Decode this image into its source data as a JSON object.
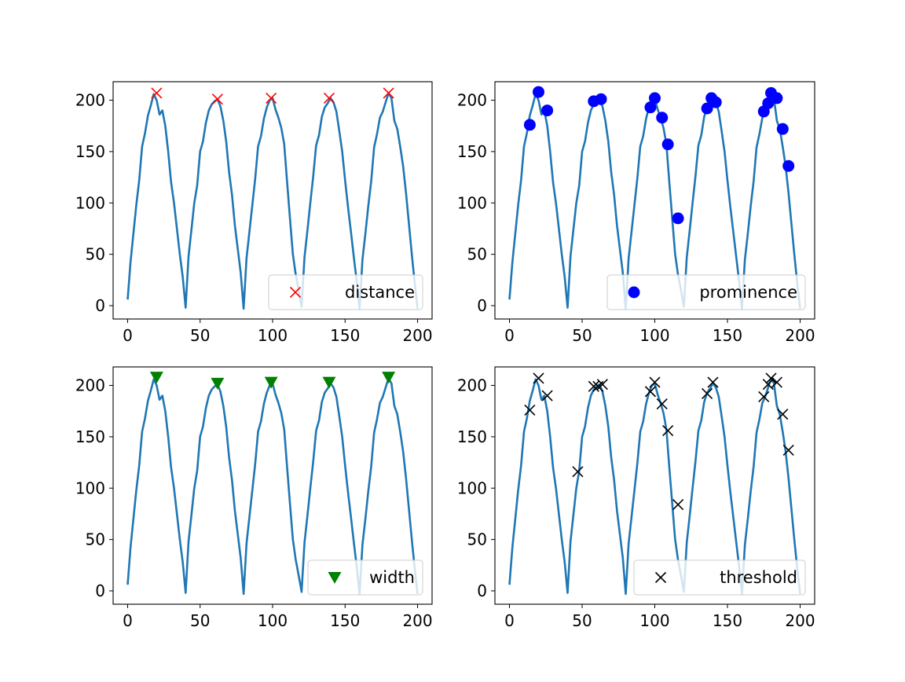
{
  "chart_data": [
    {
      "type": "line",
      "legend_label": "distance",
      "legend_position": "lower-right",
      "marker": "x",
      "marker_color": "#ff0000",
      "line_color": "#1f77b4",
      "xlim": [
        -10,
        210
      ],
      "ylim": [
        -13,
        218
      ],
      "xticks": [
        0,
        50,
        100,
        150,
        200
      ],
      "yticks": [
        0,
        50,
        100,
        150,
        200
      ],
      "peaks": [
        {
          "x": 20,
          "y": 207
        },
        {
          "x": 62,
          "y": 201
        },
        {
          "x": 99,
          "y": 202
        },
        {
          "x": 139,
          "y": 202
        },
        {
          "x": 180,
          "y": 207
        }
      ]
    },
    {
      "type": "line",
      "legend_label": "prominence",
      "legend_position": "lower-right",
      "marker": "o",
      "marker_color": "#0000ff",
      "line_color": "#1f77b4",
      "xlim": [
        -10,
        210
      ],
      "ylim": [
        -13,
        218
      ],
      "xticks": [
        0,
        50,
        100,
        150,
        200
      ],
      "yticks": [
        0,
        50,
        100,
        150,
        200
      ],
      "peaks": [
        {
          "x": 14,
          "y": 176
        },
        {
          "x": 20,
          "y": 208
        },
        {
          "x": 26,
          "y": 190
        },
        {
          "x": 58,
          "y": 199
        },
        {
          "x": 63,
          "y": 201
        },
        {
          "x": 97,
          "y": 193
        },
        {
          "x": 100,
          "y": 202
        },
        {
          "x": 105,
          "y": 183
        },
        {
          "x": 109,
          "y": 157
        },
        {
          "x": 116,
          "y": 85
        },
        {
          "x": 136,
          "y": 192
        },
        {
          "x": 139,
          "y": 202
        },
        {
          "x": 142,
          "y": 198
        },
        {
          "x": 175,
          "y": 189
        },
        {
          "x": 178,
          "y": 197
        },
        {
          "x": 180,
          "y": 207
        },
        {
          "x": 184,
          "y": 202
        },
        {
          "x": 188,
          "y": 172
        },
        {
          "x": 192,
          "y": 136
        }
      ]
    },
    {
      "type": "line",
      "legend_label": "width",
      "legend_position": "lower-right",
      "marker": "v",
      "marker_color": "#008000",
      "line_color": "#1f77b4",
      "xlim": [
        -10,
        210
      ],
      "ylim": [
        -13,
        218
      ],
      "xticks": [
        0,
        50,
        100,
        150,
        200
      ],
      "yticks": [
        0,
        50,
        100,
        150,
        200
      ],
      "peaks": [
        {
          "x": 20,
          "y": 208
        },
        {
          "x": 62,
          "y": 202
        },
        {
          "x": 99,
          "y": 203
        },
        {
          "x": 139,
          "y": 203
        },
        {
          "x": 180,
          "y": 208
        }
      ]
    },
    {
      "type": "line",
      "legend_label": "threshold",
      "legend_position": "lower-right",
      "marker": "x",
      "marker_color": "#000000",
      "line_color": "#1f77b4",
      "xlim": [
        -10,
        210
      ],
      "ylim": [
        -13,
        218
      ],
      "xticks": [
        0,
        50,
        100,
        150,
        200
      ],
      "yticks": [
        0,
        50,
        100,
        150,
        200
      ],
      "peaks": [
        {
          "x": 14,
          "y": 176
        },
        {
          "x": 20,
          "y": 207
        },
        {
          "x": 26,
          "y": 190
        },
        {
          "x": 47,
          "y": 116
        },
        {
          "x": 58,
          "y": 199
        },
        {
          "x": 61,
          "y": 199
        },
        {
          "x": 64,
          "y": 201
        },
        {
          "x": 97,
          "y": 194
        },
        {
          "x": 100,
          "y": 203
        },
        {
          "x": 105,
          "y": 182
        },
        {
          "x": 109,
          "y": 156
        },
        {
          "x": 116,
          "y": 84
        },
        {
          "x": 136,
          "y": 192
        },
        {
          "x": 140,
          "y": 203
        },
        {
          "x": 175,
          "y": 189
        },
        {
          "x": 178,
          "y": 201
        },
        {
          "x": 180,
          "y": 207
        },
        {
          "x": 184,
          "y": 203
        },
        {
          "x": 188,
          "y": 172
        },
        {
          "x": 192,
          "y": 137
        }
      ]
    }
  ],
  "signal": {
    "x": [
      0,
      2,
      4,
      6,
      8,
      10,
      12,
      14,
      16,
      18,
      20,
      22,
      24,
      26,
      28,
      30,
      32,
      34,
      36,
      38,
      40,
      42,
      44,
      46,
      48,
      50,
      52,
      54,
      56,
      58,
      60,
      62,
      64,
      66,
      68,
      70,
      72,
      74,
      76,
      78,
      80,
      82,
      84,
      86,
      88,
      90,
      92,
      94,
      96,
      98,
      100,
      102,
      104,
      106,
      108,
      110,
      112,
      114,
      116,
      118,
      120,
      122,
      124,
      126,
      128,
      130,
      132,
      134,
      136,
      138,
      140,
      142,
      144,
      146,
      148,
      150,
      152,
      154,
      156,
      158,
      160,
      162,
      164,
      166,
      168,
      170,
      172,
      174,
      176,
      178,
      180,
      182,
      184,
      186,
      188,
      190,
      192,
      194,
      196,
      198,
      200
    ],
    "y": [
      6,
      42,
      70,
      98,
      122,
      155,
      168,
      185,
      195,
      206,
      200,
      186,
      190,
      175,
      150,
      120,
      100,
      75,
      50,
      28,
      -2,
      48,
      74,
      100,
      117,
      150,
      160,
      178,
      190,
      196,
      199,
      201,
      194,
      180,
      160,
      130,
      108,
      78,
      55,
      32,
      -3,
      46,
      72,
      98,
      124,
      155,
      165,
      182,
      193,
      200,
      202,
      191,
      183,
      173,
      157,
      120,
      85,
      50,
      30,
      15,
      -1,
      47,
      73,
      100,
      126,
      156,
      166,
      184,
      193,
      197,
      202,
      198,
      189,
      170,
      150,
      122,
      96,
      72,
      48,
      24,
      -3,
      45,
      70,
      97,
      121,
      154,
      167,
      183,
      189,
      198,
      207,
      202,
      180,
      172,
      155,
      136,
      110,
      80,
      50,
      22,
      -3
    ]
  }
}
